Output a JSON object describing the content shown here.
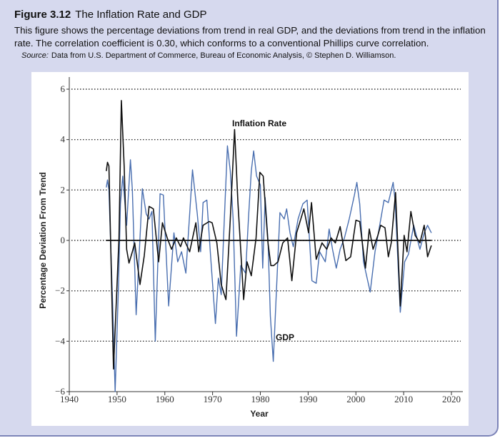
{
  "figure": {
    "number": "Figure 3.12",
    "title": "The Inflation Rate and GDP",
    "caption": "This figure shows the percentage deviations from trend in real GDP, and the deviations from trend in the inflation rate. The correlation coefficient is 0.30, which conforms to a conventional Phillips curve correlation.",
    "source_label": "Source:",
    "source_text": "Data from U.S. Department of Commerce, Bureau of Economic Analysis, © Stephen D. Williamson."
  },
  "chart_data": {
    "type": "line",
    "xlabel": "Year",
    "ylabel": "Percentage Deviation From Trend",
    "xlim": [
      1940,
      2020
    ],
    "ylim": [
      -6,
      6
    ],
    "xticks": [
      "1940",
      "1950",
      "1960",
      "1970",
      "1980",
      "1990",
      "2000",
      "2010",
      "2020"
    ],
    "yticks": [
      "6",
      "4",
      "2",
      "0",
      "−2",
      "−4",
      "−6"
    ],
    "grid": "horizontal dotted",
    "annotations": [
      {
        "text": "Inflation Rate",
        "series": "inflation"
      },
      {
        "text": "GDP",
        "series": "gdp"
      }
    ],
    "colors": {
      "inflation": "#111111",
      "gdp": "#4a6fb0",
      "zero_line": "#111111"
    },
    "series": [
      {
        "name": "Inflation Rate",
        "key": "inflation",
        "x": [
          1947.75,
          1948,
          1948.3,
          1949.25,
          1950.4,
          1950.9,
          1951.5,
          1952,
          1952.5,
          1953.2,
          1953.7,
          1954.8,
          1955.7,
          1956.7,
          1957.6,
          1958.7,
          1959.5,
          1960.5,
          1961.4,
          1962.4,
          1963.3,
          1963.9,
          1965.2,
          1966.5,
          1967.1,
          1968,
          1969.3,
          1969.9,
          1970.9,
          1971.8,
          1972.8,
          1973.7,
          1974.6,
          1975.3,
          1976.5,
          1977.2,
          1978.1,
          1979.1,
          1979.9,
          1980.6,
          1981.6,
          1982.2,
          1982.8,
          1983.7,
          1984.7,
          1985.7,
          1986.6,
          1987.6,
          1989.1,
          1990.1,
          1990.7,
          1991.7,
          1992.9,
          1993.9,
          1994.8,
          1995.7,
          1996.7,
          1997.9,
          1998.9,
          2000,
          2000.8,
          2002,
          2002.8,
          2003.6,
          2004.6,
          2005.2,
          2006.1,
          2006.8,
          2007.4,
          2008.3,
          2009.3,
          2010.1,
          2010.7,
          2011.5,
          2012.4,
          2013.4,
          2014.3,
          2015,
          2015.8
        ],
        "values": [
          2.75,
          3.1,
          2.95,
          -5.1,
          0.1,
          5.55,
          2.9,
          -0.35,
          -0.9,
          -0.45,
          -0.1,
          -1.75,
          -0.6,
          1.35,
          1.25,
          -0.85,
          0.7,
          0.1,
          -0.35,
          0.1,
          -0.25,
          0.1,
          -0.45,
          0.7,
          -0.45,
          0.6,
          0.75,
          0.7,
          -0.1,
          -1.75,
          -2.35,
          0.85,
          4.4,
          1.5,
          -2.35,
          -0.85,
          -1.4,
          0.1,
          2.7,
          2.55,
          -0.1,
          -1.0,
          -1.0,
          -0.85,
          -0.1,
          0.1,
          -1.6,
          0.3,
          1.25,
          0.3,
          1.5,
          -0.75,
          -0.1,
          -0.35,
          0.1,
          -0.1,
          0.55,
          -0.8,
          -0.65,
          0.8,
          0.75,
          -1.1,
          0.45,
          -0.35,
          0.2,
          0.6,
          0.5,
          -0.65,
          -0.1,
          1.9,
          -2.6,
          0.2,
          -0.45,
          1.15,
          0.2,
          -0.1,
          0.6,
          -0.65,
          -0.2
        ]
      },
      {
        "name": "GDP",
        "key": "gdp",
        "x": [
          1947.75,
          1948,
          1948.3,
          1949.1,
          1949.6,
          1950.3,
          1950.7,
          1951.2,
          1952,
          1952.8,
          1953.2,
          1954,
          1954.8,
          1955.3,
          1956.1,
          1956.7,
          1957.3,
          1958,
          1959,
          1959.7,
          1960.8,
          1961.9,
          1962.7,
          1963.5,
          1964.4,
          1965.8,
          1966.8,
          1967.5,
          1968,
          1968.8,
          1969.6,
          1970.6,
          1971.2,
          1971.8,
          1972.4,
          1973.1,
          1973.7,
          1974.3,
          1975,
          1975.9,
          1976.9,
          1977.5,
          1978.1,
          1978.6,
          1979.2,
          1980,
          1980.5,
          1981,
          1981.6,
          1982.1,
          1982.7,
          1983.2,
          1984.1,
          1985,
          1985.5,
          1986.2,
          1986.9,
          1987.9,
          1988.9,
          1989.8,
          1990.8,
          1991.7,
          1992.4,
          1993.6,
          1994.4,
          1995.1,
          1995.9,
          1996.7,
          1997.6,
          1998.6,
          1999.7,
          2000.2,
          2000.8,
          2001.6,
          2003,
          2004,
          2004.9,
          2005.9,
          2006.8,
          2007.8,
          2008.2,
          2009.3,
          2010.2,
          2011,
          2012.1,
          2013.4,
          2014.3,
          2015,
          2015.8
        ],
        "values": [
          2.1,
          2.4,
          2.0,
          -2.7,
          -6.0,
          -1.8,
          1.45,
          2.55,
          0.6,
          3.2,
          2.0,
          -2.95,
          0.1,
          2.05,
          1.05,
          0.85,
          1.15,
          -4.0,
          1.85,
          1.8,
          -2.6,
          0.3,
          -0.85,
          -0.45,
          -1.3,
          2.8,
          1.05,
          -0.45,
          1.5,
          1.6,
          -0.65,
          -3.3,
          -1.5,
          -2.15,
          0.6,
          3.75,
          2.75,
          0.85,
          -3.8,
          -1.0,
          -1.3,
          0.85,
          2.75,
          3.55,
          2.55,
          2.2,
          -1.1,
          1.7,
          0,
          -3.0,
          -4.8,
          -2.7,
          1.1,
          0.85,
          1.25,
          0.3,
          -0.25,
          0.85,
          1.45,
          1.6,
          -1.6,
          -1.7,
          -0.45,
          -0.85,
          0.45,
          -0.35,
          -1.1,
          -0.35,
          0.1,
          0.85,
          1.8,
          2.3,
          1.45,
          -0.85,
          -2.05,
          -0.45,
          0.5,
          1.6,
          1.5,
          2.3,
          1.6,
          -2.85,
          -0.85,
          -0.55,
          0.6,
          -0.35,
          0.3,
          0.6,
          0.3
        ]
      }
    ]
  }
}
